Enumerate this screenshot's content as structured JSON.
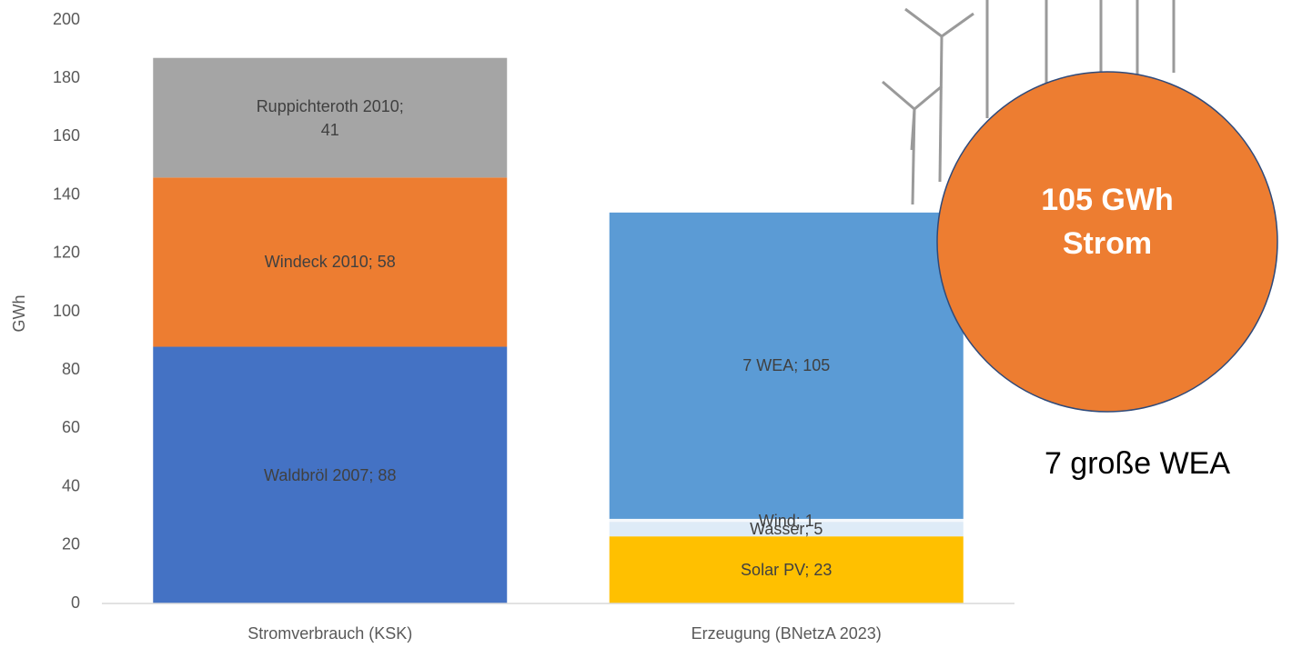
{
  "chart_data": {
    "type": "stacked_bar",
    "y_label": "GWh",
    "categories": [
      "Stromverbrauch (KSK)",
      "Erzeugung (BNetzA 2023)"
    ],
    "series": [
      {
        "color": "#4472c4",
        "values": [
          88,
          null
        ],
        "value_labels": [
          "Waldbröl 2007; 88",
          null
        ]
      },
      {
        "color": "#ed7d31",
        "values": [
          58,
          null
        ],
        "value_labels": [
          "Windeck 2010; 58",
          null
        ]
      },
      {
        "color": "#a5a5a5",
        "values": [
          41,
          null
        ],
        "value_labels": [
          "Ruppichteroth 2010; 41",
          null
        ]
      },
      {
        "color": "#ffc000",
        "values": [
          null,
          23
        ],
        "value_labels": [
          null,
          "Solar PV; 23"
        ]
      },
      {
        "color": "#deebf7",
        "values": [
          null,
          5
        ],
        "value_labels": [
          null,
          "Wasser; 5"
        ]
      },
      {
        "color": "#f4f8fc",
        "values": [
          null,
          1
        ],
        "value_labels": [
          null,
          "Wind; 1"
        ]
      },
      {
        "color": "#5b9bd5",
        "values": [
          null,
          105
        ],
        "value_labels": [
          null,
          "7 WEA; 105"
        ]
      }
    ],
    "ylim": [
      0,
      200
    ],
    "yticks": [
      0,
      20,
      40,
      60,
      80,
      100,
      120,
      140,
      160,
      180,
      200
    ],
    "annotations": [
      "105 GWh",
      "Strom",
      "7 große WEA"
    ]
  }
}
